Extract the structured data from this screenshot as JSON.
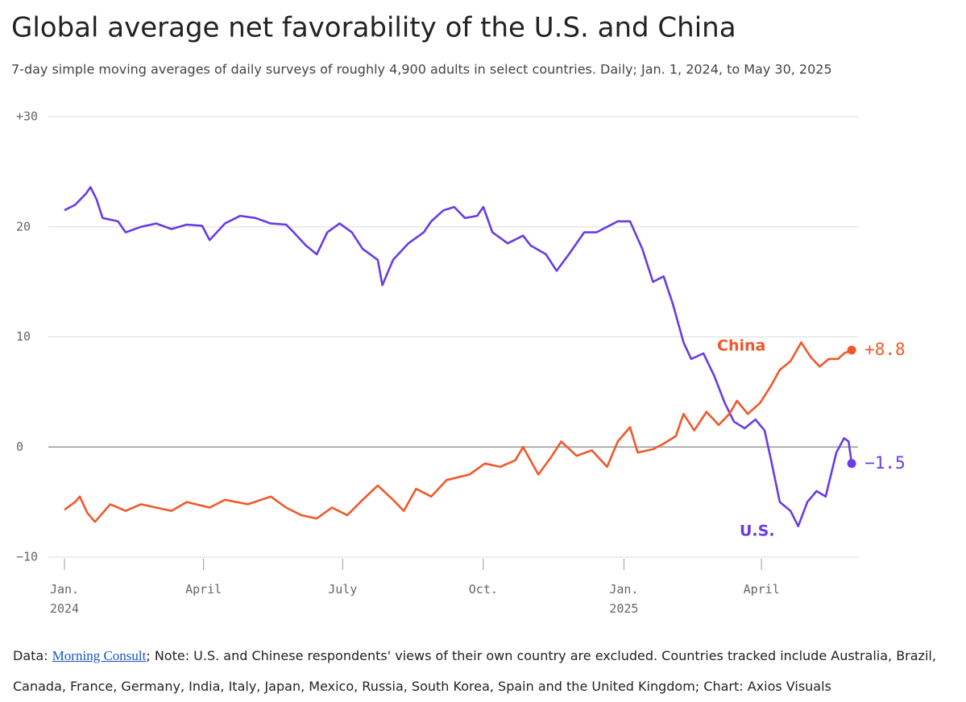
{
  "chart_data": {
    "type": "line",
    "title": "Global average net favorability of the U.S. and China",
    "subtitle": "7-day simple moving averages of daily surveys of roughly 4,900 adults in select countries. Daily; Jan. 1, 2024, to May 30, 2025",
    "xlim": [
      0,
      516
    ],
    "xticks": [
      {
        "value": 0,
        "label": "Jan. 2024"
      },
      {
        "value": 91,
        "label": "April"
      },
      {
        "value": 182,
        "label": "July"
      },
      {
        "value": 274,
        "label": "Oct."
      },
      {
        "value": 366,
        "label": "Jan. 2025"
      },
      {
        "value": 456,
        "label": "April"
      }
    ],
    "ylim": [
      -10,
      30
    ],
    "yticks": [
      {
        "value": 30,
        "label": "+30"
      },
      20,
      10,
      0,
      {
        "value": -10,
        "label": "−10"
      }
    ],
    "grid": true,
    "series": [
      {
        "name": "U.S.",
        "color": "#6a3be4",
        "value_label": "−1.5",
        "x": [
          0,
          7,
          14,
          17,
          21,
          25,
          35,
          40,
          50,
          60,
          70,
          80,
          90,
          95,
          105,
          115,
          125,
          135,
          145,
          150,
          158,
          165,
          172,
          180,
          188,
          195,
          205,
          208,
          215,
          225,
          235,
          240,
          248,
          255,
          262,
          270,
          274,
          280,
          290,
          300,
          305,
          315,
          322,
          330,
          340,
          348,
          355,
          362,
          370,
          378,
          385,
          392,
          398,
          405,
          410,
          418,
          425,
          432,
          438,
          445,
          452,
          458,
          462,
          468,
          475,
          480,
          486,
          492,
          498,
          505,
          510,
          513,
          515
        ],
        "values": [
          21.5,
          22,
          23,
          23.6,
          22.5,
          20.8,
          20.5,
          19.5,
          20,
          20.3,
          19.8,
          20.2,
          20.1,
          18.8,
          20.3,
          21,
          20.8,
          20.3,
          20.2,
          19.5,
          18.3,
          17.5,
          19.5,
          20.3,
          19.5,
          18,
          17,
          14.7,
          17,
          18.5,
          19.5,
          20.5,
          21.5,
          21.8,
          20.8,
          21,
          21.8,
          19.5,
          18.5,
          19.2,
          18.3,
          17.5,
          16,
          17.5,
          19.5,
          19.5,
          20,
          20.5,
          20.5,
          18,
          15,
          15.5,
          13,
          9.5,
          8,
          8.5,
          6.5,
          4,
          2.3,
          1.7,
          2.5,
          1.5,
          -1,
          -5,
          -5.8,
          -7.2,
          -5,
          -4,
          -4.5,
          -0.5,
          0.8,
          0.5,
          -1.5
        ]
      },
      {
        "name": "China",
        "color": "#f0582a",
        "value_label": "+8.8",
        "x": [
          0,
          7,
          10,
          15,
          20,
          30,
          40,
          50,
          60,
          70,
          80,
          95,
          105,
          120,
          135,
          145,
          155,
          165,
          175,
          185,
          195,
          205,
          215,
          222,
          230,
          240,
          250,
          265,
          275,
          285,
          295,
          300,
          310,
          318,
          325,
          335,
          345,
          355,
          362,
          370,
          375,
          385,
          392,
          400,
          405,
          412,
          420,
          428,
          435,
          440,
          447,
          455,
          462,
          468,
          475,
          482,
          488,
          494,
          500,
          506,
          510,
          515
        ],
        "values": [
          -5.7,
          -5,
          -4.5,
          -6,
          -6.8,
          -5.2,
          -5.8,
          -5.2,
          -5.5,
          -5.8,
          -5,
          -5.5,
          -4.8,
          -5.2,
          -4.5,
          -5.5,
          -6.2,
          -6.5,
          -5.5,
          -6.2,
          -4.8,
          -3.5,
          -4.8,
          -5.8,
          -3.8,
          -4.5,
          -3,
          -2.5,
          -1.5,
          -1.8,
          -1.2,
          0,
          -2.5,
          -1,
          0.5,
          -0.8,
          -0.3,
          -1.8,
          0.5,
          1.8,
          -0.5,
          -0.2,
          0.3,
          1,
          3,
          1.5,
          3.2,
          2,
          3,
          4.2,
          3,
          4,
          5.5,
          7,
          7.8,
          9.5,
          8.2,
          7.3,
          8,
          8,
          8.5,
          8.8
        ]
      }
    ],
    "footer": {
      "prefix": "Data: ",
      "source": "Morning Consult",
      "note": "; Note: U.S. and Chinese respondents' views of their own country are excluded. Countries tracked include Australia, Brazil, Canada, France, Germany, India, Italy, Japan, Mexico, Russia, South Korea, Spain and the United Kingdom; Chart: Axios Visuals"
    }
  }
}
